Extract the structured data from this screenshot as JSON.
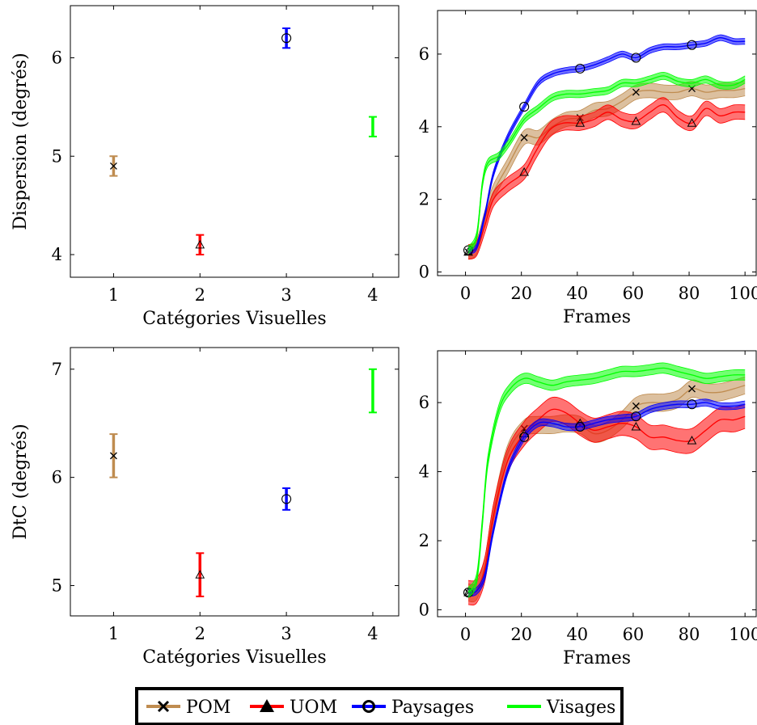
{
  "chart_data": [
    {
      "type": "scatter",
      "xlabel": "Catégories Visuelles",
      "ylabel": "Dispersion (degrés)",
      "xlim": [
        0.5,
        4.3
      ],
      "ylim": [
        3.77,
        6.53
      ],
      "xticks": [
        1,
        2,
        3,
        4
      ],
      "yticks": [
        4,
        5,
        6
      ],
      "points": [
        {
          "series": "POM",
          "x": 1,
          "y": 4.9,
          "low": 4.8,
          "high": 5.0
        },
        {
          "series": "UOM",
          "x": 2,
          "y": 4.1,
          "low": 4.0,
          "high": 4.2
        },
        {
          "series": "Paysages",
          "x": 3,
          "y": 6.2,
          "low": 6.1,
          "high": 6.3
        },
        {
          "series": "Visages",
          "x": 4,
          "y": 5.3,
          "low": 5.2,
          "high": 5.4
        }
      ]
    },
    {
      "type": "line",
      "xlabel": "Frames",
      "ylabel": "",
      "xlim": [
        -10,
        104
      ],
      "ylim": [
        -0.1,
        7.2
      ],
      "xticks": [
        0,
        20,
        40,
        60,
        80,
        100
      ],
      "yticks": [
        0,
        2,
        4,
        6
      ],
      "band": "shaded confidence band",
      "series": [
        {
          "name": "POM",
          "x": [
            1,
            4,
            7,
            10,
            15,
            21,
            26,
            31,
            36,
            41,
            46,
            51,
            56,
            61,
            66,
            71,
            76,
            81,
            86,
            91,
            96,
            100
          ],
          "y": [
            0.55,
            0.7,
            1.5,
            2.2,
            2.9,
            3.7,
            3.7,
            4.0,
            4.2,
            4.25,
            4.45,
            4.5,
            4.7,
            4.95,
            5.0,
            4.95,
            4.95,
            5.05,
            4.95,
            5.0,
            5.0,
            5.05
          ],
          "band": 0.2
        },
        {
          "name": "UOM",
          "x": [
            1,
            4,
            7,
            10,
            15,
            21,
            25,
            30,
            35,
            41,
            46,
            51,
            56,
            61,
            66,
            71,
            76,
            81,
            86,
            91,
            96,
            100
          ],
          "y": [
            0.55,
            0.65,
            1.3,
            2.0,
            2.4,
            2.75,
            3.3,
            3.9,
            4.1,
            4.1,
            4.2,
            4.4,
            4.2,
            4.15,
            4.4,
            4.6,
            4.25,
            4.1,
            4.5,
            4.3,
            4.4,
            4.4
          ],
          "band": 0.2
        },
        {
          "name": "Paysages",
          "x": [
            1,
            4,
            7,
            10,
            15,
            21,
            26,
            31,
            36,
            41,
            46,
            51,
            56,
            61,
            66,
            71,
            76,
            81,
            86,
            91,
            96,
            100
          ],
          "y": [
            0.6,
            0.7,
            1.6,
            2.7,
            3.7,
            4.55,
            5.2,
            5.45,
            5.55,
            5.6,
            5.7,
            5.85,
            6.0,
            5.9,
            6.1,
            6.2,
            6.2,
            6.25,
            6.3,
            6.45,
            6.35,
            6.35
          ],
          "band": 0.08
        },
        {
          "name": "Visages",
          "x": [
            1,
            4,
            6,
            8,
            12,
            16,
            21,
            26,
            31,
            36,
            41,
            46,
            51,
            56,
            61,
            66,
            71,
            76,
            81,
            86,
            91,
            96,
            100
          ],
          "y": [
            0.6,
            1.0,
            2.4,
            3.0,
            3.2,
            3.6,
            4.2,
            4.5,
            4.8,
            4.9,
            4.9,
            4.95,
            5.0,
            5.2,
            5.2,
            5.3,
            5.4,
            5.25,
            5.2,
            5.3,
            5.15,
            5.15,
            5.3
          ],
          "band": 0.1
        }
      ]
    },
    {
      "type": "scatter",
      "xlabel": "Catégories Visuelles",
      "ylabel": "DtC (degrés)",
      "xlim": [
        0.5,
        4.3
      ],
      "ylim": [
        4.72,
        7.2
      ],
      "xticks": [
        1,
        2,
        3,
        4
      ],
      "yticks": [
        5,
        6,
        7
      ],
      "points": [
        {
          "series": "POM",
          "x": 1,
          "y": 6.2,
          "low": 6.0,
          "high": 6.4
        },
        {
          "series": "UOM",
          "x": 2,
          "y": 5.1,
          "low": 4.9,
          "high": 5.3
        },
        {
          "series": "Paysages",
          "x": 3,
          "y": 5.8,
          "low": 5.7,
          "high": 5.9
        },
        {
          "series": "Visages",
          "x": 4,
          "y": 6.8,
          "low": 6.6,
          "high": 7.0
        }
      ]
    },
    {
      "type": "line",
      "xlabel": "Frames",
      "ylabel": "",
      "xlim": [
        -10,
        104
      ],
      "ylim": [
        -0.2,
        7.5
      ],
      "xticks": [
        0,
        20,
        40,
        60,
        80,
        100
      ],
      "yticks": [
        0,
        2,
        4,
        6
      ],
      "band": "shaded confidence band",
      "series": [
        {
          "name": "POM",
          "x": [
            1,
            4,
            7,
            10,
            15,
            21,
            26,
            31,
            36,
            41,
            46,
            51,
            56,
            61,
            66,
            71,
            76,
            81,
            86,
            91,
            96,
            100
          ],
          "y": [
            0.5,
            0.55,
            1.3,
            2.8,
            4.5,
            5.25,
            5.35,
            5.35,
            5.4,
            5.35,
            5.1,
            5.2,
            5.5,
            5.9,
            6.0,
            6.0,
            6.1,
            6.4,
            6.3,
            6.3,
            6.4,
            6.5
          ],
          "band": 0.25
        },
        {
          "name": "UOM",
          "x": [
            1,
            4,
            7,
            10,
            15,
            21,
            26,
            31,
            36,
            41,
            46,
            51,
            56,
            61,
            66,
            71,
            76,
            81,
            86,
            91,
            96,
            100
          ],
          "y": [
            0.5,
            0.55,
            1.2,
            2.7,
            4.3,
            5.1,
            5.5,
            5.8,
            5.7,
            5.4,
            5.2,
            5.3,
            5.4,
            5.3,
            5.0,
            5.0,
            4.9,
            4.9,
            5.2,
            5.5,
            5.5,
            5.6
          ],
          "band": 0.35
        },
        {
          "name": "Paysages",
          "x": [
            1,
            4,
            7,
            10,
            15,
            21,
            26,
            31,
            36,
            41,
            46,
            51,
            56,
            61,
            66,
            71,
            76,
            81,
            86,
            91,
            96,
            100
          ],
          "y": [
            0.5,
            0.55,
            1.0,
            2.3,
            4.0,
            5.0,
            5.4,
            5.4,
            5.3,
            5.3,
            5.4,
            5.5,
            5.55,
            5.6,
            5.8,
            5.9,
            5.95,
            5.95,
            6.0,
            5.9,
            5.9,
            5.95
          ],
          "band": 0.1
        },
        {
          "name": "Visages",
          "x": [
            1,
            4,
            6,
            8,
            12,
            16,
            21,
            26,
            31,
            36,
            41,
            46,
            51,
            56,
            61,
            66,
            71,
            76,
            81,
            86,
            91,
            96,
            100
          ],
          "y": [
            0.5,
            0.9,
            2.5,
            4.3,
            5.8,
            6.4,
            6.7,
            6.6,
            6.5,
            6.6,
            6.65,
            6.7,
            6.8,
            6.9,
            6.9,
            6.95,
            7.0,
            6.9,
            6.8,
            6.7,
            6.75,
            6.8,
            6.8
          ],
          "band": 0.15
        }
      ]
    }
  ],
  "legend": {
    "position": "bottom-center",
    "entries": [
      {
        "label": "POM",
        "color": "#bf8c50",
        "marker": "x"
      },
      {
        "label": "UOM",
        "color": "#ff0000",
        "marker": "triangle"
      },
      {
        "label": "Paysages",
        "color": "#0000ff",
        "marker": "circle"
      },
      {
        "label": "Visages",
        "color": "#00ff00",
        "marker": "none"
      }
    ]
  },
  "colors": {
    "POM": "#bf8c50",
    "UOM": "#ff0000",
    "Paysages": "#0000ff",
    "Visages": "#00ff00"
  }
}
